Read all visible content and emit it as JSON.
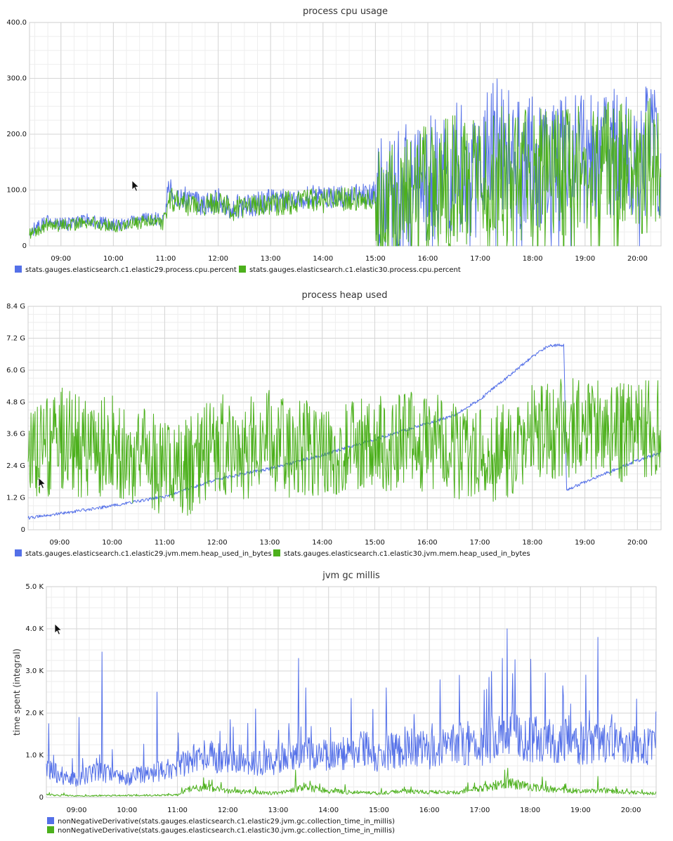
{
  "colors": {
    "blue": "#5470e8",
    "green": "#4cb01c",
    "grid_major": "#d6d6d6",
    "grid_minor": "#eeeeee",
    "axis": "#999999"
  },
  "cursor_icon": "mouse-pointer-icon",
  "chart_data": [
    {
      "type": "line",
      "title": "process cpu usage",
      "xlabel": "",
      "ylabel": "",
      "x_ticks": [
        "09:00",
        "10:00",
        "11:00",
        "12:00",
        "13:00",
        "14:00",
        "15:00",
        "16:00",
        "17:00",
        "18:00",
        "19:00",
        "20:00"
      ],
      "x_range_hours": [
        8.4,
        20.45
      ],
      "ylim": [
        0,
        400
      ],
      "y_ticks": [
        0,
        100,
        200,
        300,
        400
      ],
      "y_tick_labels": [
        "0",
        "100.0",
        "200.0",
        "300.0",
        "400.0"
      ],
      "grid": true,
      "legend": "bottom",
      "series": [
        {
          "name": "stats.gauges.elasticsearch.c1.elastic29.process.cpu.percent",
          "color": "#5470e8",
          "x_hours": [
            8.4,
            8.75,
            9.0,
            9.25,
            9.5,
            9.75,
            10.0,
            10.25,
            10.5,
            10.75,
            10.95,
            11.05,
            11.25,
            11.5,
            11.75,
            12.0,
            12.25,
            12.5,
            12.75,
            13.0,
            13.25,
            13.5,
            13.75,
            14.0,
            14.25,
            14.5,
            14.75,
            15.0,
            15.25,
            15.5,
            15.75,
            16.0,
            16.25,
            16.5,
            16.75,
            17.0,
            17.15,
            17.25,
            17.5,
            17.75,
            18.0,
            18.25,
            18.5,
            18.75,
            19.0,
            19.25,
            19.5,
            19.75,
            20.0,
            20.25,
            20.45
          ],
          "values": [
            25,
            45,
            38,
            40,
            48,
            42,
            38,
            40,
            45,
            50,
            45,
            100,
            90,
            80,
            75,
            82,
            70,
            72,
            76,
            80,
            82,
            85,
            88,
            85,
            86,
            88,
            92,
            95,
            110,
            100,
            105,
            115,
            120,
            140,
            130,
            120,
            200,
            190,
            160,
            150,
            155,
            150,
            145,
            150,
            160,
            170,
            165,
            160,
            165,
            170,
            150
          ]
        },
        {
          "name": "stats.gauges.elasticsearch.c1.elastic30.process.cpu.percent",
          "color": "#4cb01c",
          "x_hours": [
            8.4,
            8.75,
            9.0,
            9.25,
            9.5,
            9.75,
            10.0,
            10.25,
            10.5,
            10.75,
            10.95,
            11.05,
            11.25,
            11.5,
            11.75,
            12.0,
            12.25,
            12.5,
            12.75,
            13.0,
            13.25,
            13.5,
            13.75,
            14.0,
            14.25,
            14.5,
            14.75,
            15.0,
            15.25,
            15.5,
            15.75,
            16.0,
            16.25,
            16.5,
            16.75,
            17.0,
            17.15,
            17.25,
            17.5,
            17.75,
            18.0,
            18.25,
            18.5,
            18.75,
            19.0,
            19.25,
            19.5,
            19.75,
            20.0,
            20.25,
            20.45
          ],
          "values": [
            22,
            40,
            35,
            38,
            42,
            40,
            35,
            38,
            42,
            45,
            40,
            85,
            78,
            72,
            70,
            75,
            66,
            68,
            70,
            74,
            76,
            80,
            82,
            80,
            82,
            84,
            86,
            80,
            90,
            85,
            95,
            100,
            110,
            120,
            110,
            105,
            150,
            140,
            130,
            125,
            130,
            128,
            125,
            130,
            135,
            140,
            138,
            135,
            140,
            145,
            130
          ]
        }
      ]
    },
    {
      "type": "line",
      "title": "process heap used",
      "xlabel": "",
      "ylabel": "",
      "x_ticks": [
        "09:00",
        "10:00",
        "11:00",
        "12:00",
        "13:00",
        "14:00",
        "15:00",
        "16:00",
        "17:00",
        "18:00",
        "19:00",
        "20:00"
      ],
      "x_range_hours": [
        8.4,
        20.45
      ],
      "ylim": [
        0,
        8.4
      ],
      "y_ticks": [
        0,
        1.2,
        2.4,
        3.6,
        4.8,
        6.0,
        7.2,
        8.4
      ],
      "y_tick_labels": [
        "0",
        "1.2 G",
        "2.4 G",
        "3.6 G",
        "4.8 G",
        "6.0 G",
        "7.2 G",
        "8.4 G"
      ],
      "grid": true,
      "legend": "bottom",
      "series": [
        {
          "name": "stats.gauges.elasticsearch.c1.elastic29.jvm.mem.heap_used_in_bytes",
          "color": "#5470e8",
          "x_hours": [
            8.4,
            9.0,
            10.0,
            11.0,
            12.0,
            13.0,
            14.0,
            15.0,
            16.0,
            16.5,
            17.0,
            17.5,
            18.0,
            18.3,
            18.6,
            18.65,
            19.0,
            19.5,
            20.0,
            20.45
          ],
          "values": [
            0.45,
            0.6,
            0.9,
            1.25,
            1.9,
            2.3,
            2.8,
            3.4,
            4.0,
            4.3,
            4.9,
            5.7,
            6.5,
            6.9,
            6.95,
            1.5,
            1.8,
            2.2,
            2.6,
            2.9
          ]
        },
        {
          "name": "stats.gauges.elasticsearch.c1.elastic30.jvm.mem.heap_used_in_bytes",
          "color": "#4cb01c",
          "x_hours": [
            8.4,
            9.0,
            9.5,
            10.0,
            10.5,
            11.0,
            11.5,
            12.0,
            12.5,
            13.0,
            13.5,
            14.0,
            14.5,
            15.0,
            15.5,
            16.0,
            16.5,
            17.0,
            17.5,
            18.0,
            18.5,
            19.0,
            19.5,
            20.0,
            20.45
          ],
          "values": [
            2.5,
            3.5,
            3.0,
            3.2,
            2.8,
            2.2,
            2.4,
            3.3,
            3.0,
            3.4,
            3.0,
            2.9,
            3.0,
            3.2,
            3.4,
            3.3,
            3.0,
            2.9,
            2.8,
            3.6,
            3.8,
            3.9,
            3.6,
            3.8,
            4.0
          ]
        }
      ]
    },
    {
      "type": "line",
      "title": "jvm gc millis",
      "xlabel": "",
      "ylabel": "time spent (integral)",
      "x_ticks": [
        "09:00",
        "10:00",
        "11:00",
        "12:00",
        "13:00",
        "14:00",
        "15:00",
        "16:00",
        "17:00",
        "18:00",
        "19:00",
        "20:00"
      ],
      "x_range_hours": [
        8.4,
        20.5
      ],
      "ylim": [
        0,
        5000
      ],
      "y_ticks": [
        0,
        1000,
        2000,
        3000,
        4000,
        5000
      ],
      "y_tick_labels": [
        "0",
        "1.0 K",
        "2.0 K",
        "3.0 K",
        "4.0 K",
        "5.0 K"
      ],
      "grid": true,
      "legend": "bottom",
      "series": [
        {
          "name": "nonNegativeDerivative(stats.gauges.elasticsearch.c1.elastic29.jvm.gc.collection_time_in_millis)",
          "color": "#5470e8",
          "x_hours": [
            8.4,
            8.75,
            9.0,
            9.25,
            9.5,
            9.75,
            10.0,
            10.25,
            10.5,
            10.75,
            11.0,
            11.25,
            11.5,
            11.75,
            12.0,
            12.25,
            12.5,
            12.75,
            13.0,
            13.25,
            13.5,
            13.75,
            14.0,
            14.25,
            14.5,
            14.75,
            15.0,
            15.25,
            15.5,
            15.75,
            16.0,
            16.25,
            16.5,
            16.75,
            17.0,
            17.25,
            17.5,
            17.75,
            18.0,
            18.25,
            18.5,
            18.75,
            19.0,
            19.25,
            19.5,
            19.75,
            20.0,
            20.25,
            20.5
          ],
          "values": [
            700,
            500,
            400,
            550,
            600,
            500,
            450,
            550,
            600,
            650,
            700,
            900,
            1000,
            950,
            850,
            900,
            800,
            850,
            900,
            1000,
            1100,
            1050,
            1000,
            1050,
            1100,
            1150,
            1000,
            1100,
            1200,
            1150,
            1100,
            1200,
            1300,
            1250,
            1200,
            1400,
            1500,
            1450,
            1350,
            1400,
            1300,
            1350,
            1300,
            1250,
            1350,
            1300,
            1200,
            1250,
            1100
          ],
          "spikes": [
            [
              8.45,
              1750
            ],
            [
              9.05,
              1900
            ],
            [
              9.5,
              3450
            ],
            [
              10.6,
              2500
            ],
            [
              12.55,
              2100
            ],
            [
              13.4,
              3300
            ],
            [
              13.55,
              2600
            ],
            [
              14.45,
              2350
            ],
            [
              15.15,
              2600
            ],
            [
              16.6,
              2900
            ],
            [
              17.45,
              3300
            ],
            [
              17.55,
              4000
            ],
            [
              18.3,
              2950
            ],
            [
              18.65,
              2650
            ],
            [
              19.35,
              3800
            ]
          ]
        },
        {
          "name": "nonNegativeDerivative(stats.gauges.elasticsearch.c1.elastic30.jvm.gc.collection_time_in_millis)",
          "color": "#4cb01c",
          "x_hours": [
            8.4,
            9.0,
            9.5,
            10.0,
            10.5,
            11.0,
            11.25,
            11.5,
            12.0,
            12.5,
            13.0,
            13.25,
            13.5,
            14.0,
            14.5,
            15.0,
            15.5,
            16.0,
            16.5,
            17.0,
            17.5,
            18.0,
            18.5,
            19.0,
            19.5,
            20.0,
            20.5
          ],
          "values": [
            60,
            40,
            40,
            50,
            50,
            60,
            200,
            250,
            150,
            120,
            100,
            180,
            250,
            150,
            120,
            100,
            150,
            120,
            120,
            200,
            350,
            250,
            180,
            150,
            160,
            120,
            100
          ],
          "spikes": [
            [
              13.35,
              650
            ],
            [
              17.5,
              650
            ],
            [
              19.35,
              500
            ]
          ]
        }
      ]
    }
  ]
}
